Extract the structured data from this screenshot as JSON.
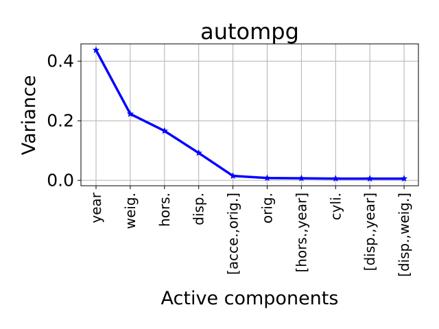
{
  "chart_data": {
    "type": "line",
    "title": "autompg",
    "xlabel": "Active components",
    "ylabel": "Variance",
    "categories": [
      "year",
      "weig.",
      "hors.",
      "disp.",
      "[acce.,orig.]",
      "orig.",
      "[hors.,year]",
      "cyli.",
      "[disp.,year]",
      "[disp.,weig.]"
    ],
    "series": [
      {
        "values": [
          0.437,
          0.223,
          0.166,
          0.092,
          0.015,
          0.008,
          0.007,
          0.006,
          0.006,
          0.006
        ],
        "color": "#0000ff",
        "marker": "star"
      }
    ],
    "yticks": [
      "0.0",
      "0.2",
      "0.4"
    ],
    "ytick_values": [
      0.0,
      0.2,
      0.4
    ],
    "ylim": [
      -0.018,
      0.458
    ],
    "grid": true,
    "grid_color": "#b0b0b0"
  }
}
